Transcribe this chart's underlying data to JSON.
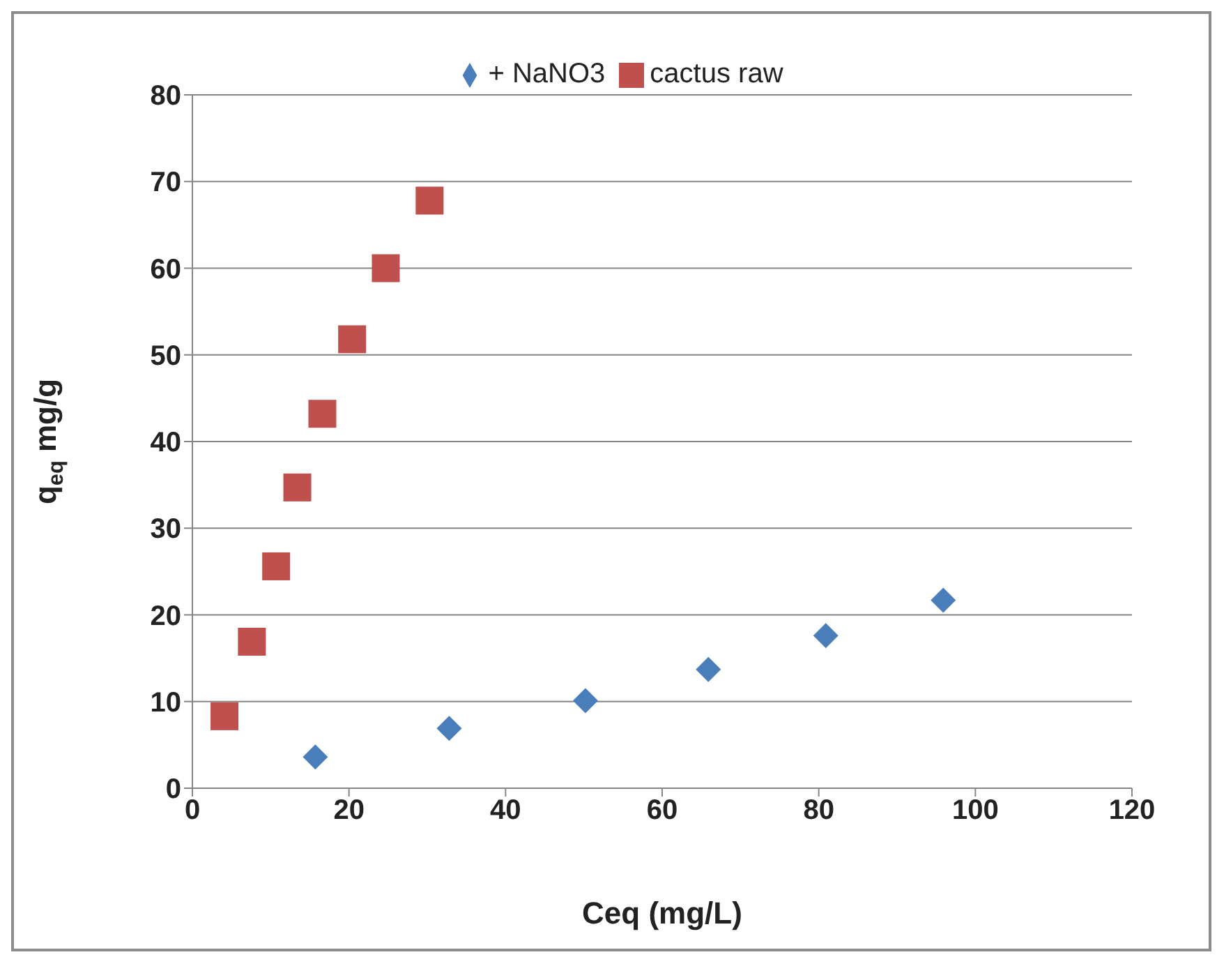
{
  "chart_data": {
    "type": "scatter",
    "xlabel": "Ceq (mg/L)",
    "ylabel": "q$_{eq}$ mg/g",
    "xlim": [
      0,
      120
    ],
    "xticks": [
      0,
      20,
      40,
      60,
      80,
      100,
      120
    ],
    "ylim": [
      0,
      80
    ],
    "yticks": [
      0,
      10,
      20,
      30,
      40,
      50,
      60,
      70,
      80
    ],
    "grid": "y",
    "legend": "top",
    "series": [
      {
        "name": "+ NaNO3",
        "color": "#4a7ebb",
        "marker": "diamond",
        "x": [
          15.7,
          32.8,
          50.2,
          65.9,
          80.9,
          95.9
        ],
        "values": [
          3.6,
          6.9,
          10.1,
          13.7,
          17.6,
          21.7
        ]
      },
      {
        "name": "cactus raw",
        "color": "#c0504d",
        "marker": "square",
        "x": [
          4.1,
          7.6,
          10.7,
          13.4,
          16.6,
          20.4,
          24.7,
          30.3
        ],
        "values": [
          8.3,
          16.9,
          25.6,
          34.7,
          43.2,
          51.8,
          60.0,
          67.8
        ]
      }
    ]
  }
}
